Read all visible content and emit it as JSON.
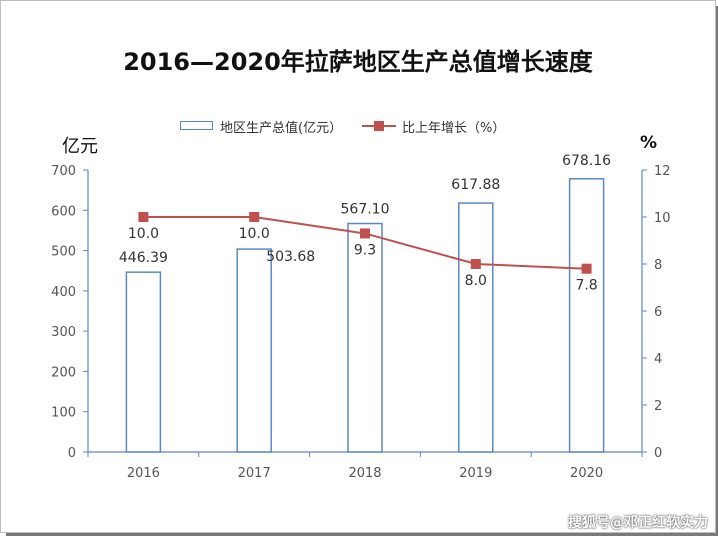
{
  "chart_data": {
    "type": "bar+line",
    "title": "2016—2020年拉萨地区生产总值增长速度",
    "categories": [
      "2016",
      "2017",
      "2018",
      "2019",
      "2020"
    ],
    "series": [
      {
        "name": "地区生产总值(亿元）",
        "type": "bar",
        "axis": "left",
        "values": [
          446.39,
          503.68,
          567.1,
          617.88,
          678.16
        ],
        "labels": [
          "446.39",
          "503.68",
          "567.10",
          "617.88",
          "678.16"
        ],
        "color": "#5b87c5"
      },
      {
        "name": "比上年增长（%）",
        "type": "line",
        "axis": "right",
        "values": [
          10.0,
          10.0,
          9.3,
          8.0,
          7.8
        ],
        "labels": [
          "10.0",
          "10.0",
          "9.3",
          "8.0",
          "7.8"
        ],
        "color": "#c0504d"
      }
    ],
    "ylabel_left": "亿元",
    "ylabel_right": "%",
    "ylim_left": [
      0,
      700
    ],
    "ylim_right": [
      0,
      12
    ],
    "yticks_left": [
      "0",
      "100",
      "200",
      "300",
      "400",
      "500",
      "600",
      "700"
    ],
    "yticks_right": [
      "0",
      "2",
      "4",
      "6",
      "8",
      "10",
      "12"
    ],
    "grid": false,
    "legend": "top"
  },
  "watermark": "搜狐号@邓正红软实力"
}
